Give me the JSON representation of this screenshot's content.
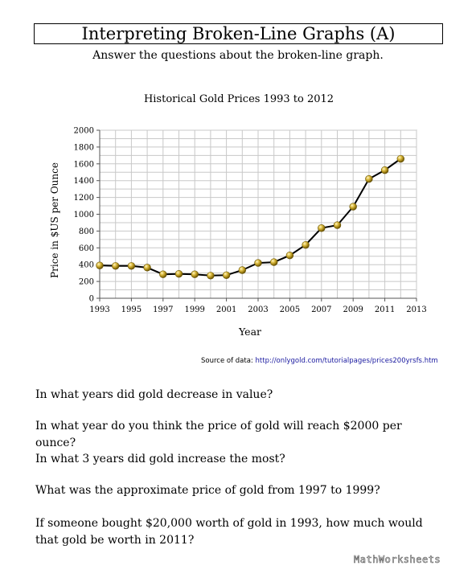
{
  "header": {
    "title": "Interpreting Broken-Line Graphs (A)",
    "instructions": "Answer the questions about the broken-line graph."
  },
  "chart_data": {
    "type": "line",
    "title": "Historical Gold Prices 1993 to 2012",
    "xlabel": "Year",
    "ylabel": "Price in $US per Ounce",
    "xlim": [
      1993,
      2013
    ],
    "ylim": [
      0,
      2000
    ],
    "x_ticks": [
      1993,
      1995,
      1997,
      1999,
      2001,
      2003,
      2005,
      2007,
      2009,
      2011,
      2013
    ],
    "y_ticks": [
      0,
      200,
      400,
      600,
      800,
      1000,
      1200,
      1400,
      1600,
      1800,
      2000
    ],
    "grid": true,
    "legend": "none",
    "x": [
      1993,
      1994,
      1995,
      1996,
      1997,
      1998,
      1999,
      2000,
      2001,
      2002,
      2003,
      2004,
      2005,
      2006,
      2007,
      2008,
      2009,
      2010,
      2011,
      2012
    ],
    "values": [
      390,
      385,
      385,
      365,
      285,
      290,
      285,
      270,
      275,
      335,
      420,
      430,
      510,
      635,
      835,
      870,
      1090,
      1420,
      1525,
      1660
    ],
    "line_color": "#000000",
    "marker_color": "#b89a1c"
  },
  "source": {
    "label": "Source of data:",
    "url": "http://onlygold.com/tutorialpages/prices200yrsfs.htm"
  },
  "questions": [
    "In what years did gold decrease in value?",
    "In what year do you think the price of gold will reach $2000 per ounce?",
    "In what 3 years did gold increase the most?",
    "What was the approximate price of gold from 1997 to 1999?",
    "If someone bought $20,000 worth of gold in 1993, how much would that gold be worth in 2011?"
  ],
  "footer": {
    "brand": "MathWorksheets"
  }
}
